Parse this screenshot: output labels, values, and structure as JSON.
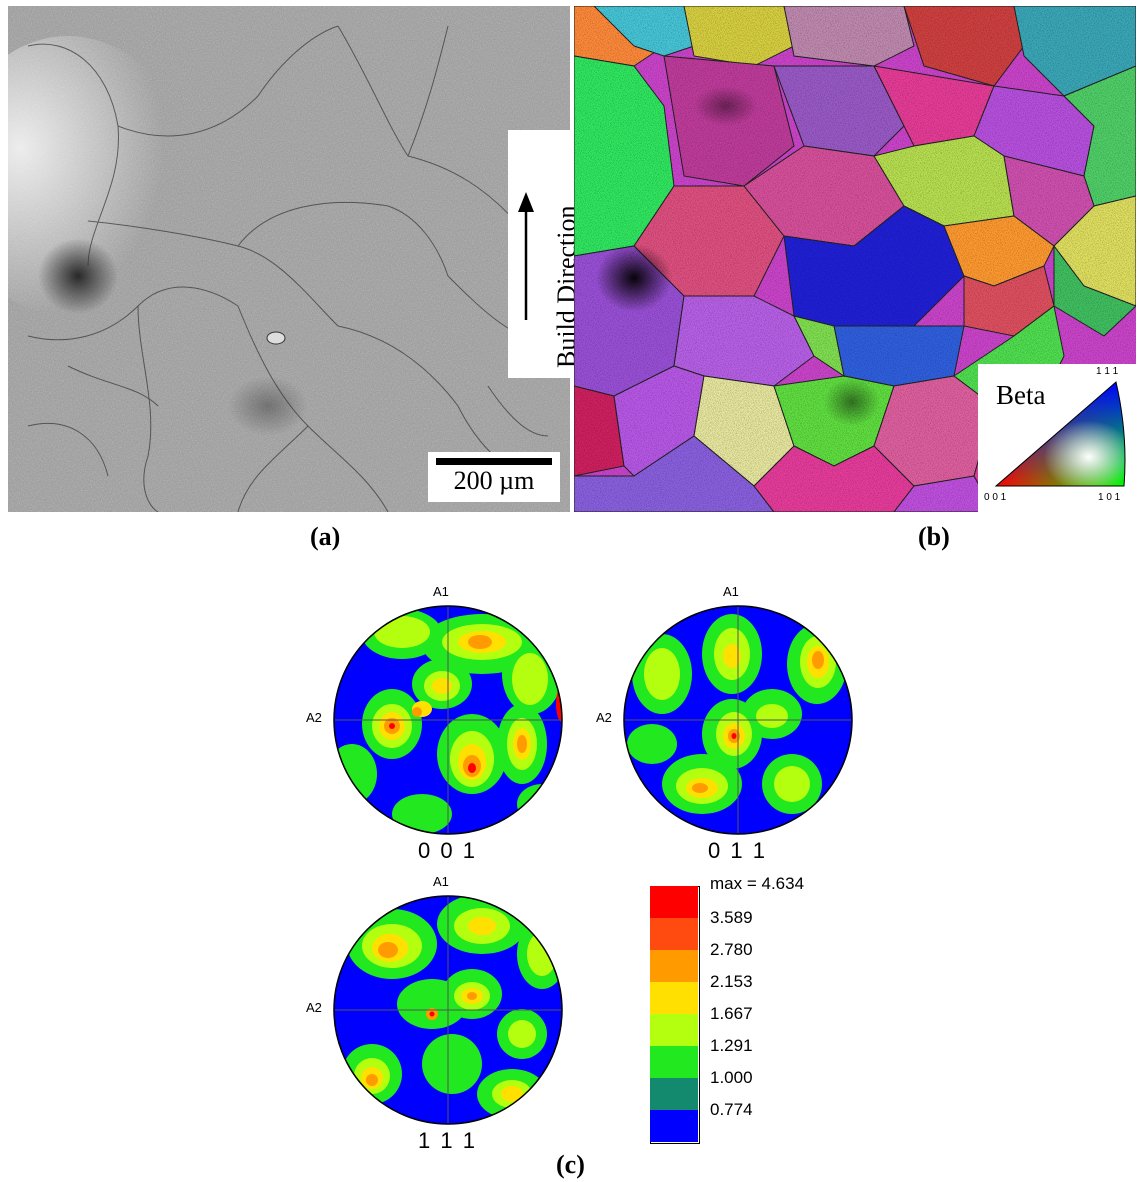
{
  "panel_a": {
    "label": "(a)",
    "scale_bar": "200 µm",
    "build_direction": "Build Direction"
  },
  "panel_b": {
    "label": "(b)",
    "ipf_key": {
      "phase": "Beta",
      "corner_top": "1 1 1",
      "corner_left": "0 0 1",
      "corner_right": "1 0 1"
    }
  },
  "panel_c": {
    "label": "(c)",
    "axis_a1": "A1",
    "axis_a2": "A2",
    "pole_figures": [
      {
        "name": "0 0 1"
      },
      {
        "name": "0 1 1"
      },
      {
        "name": "1 1 1"
      }
    ],
    "legend": {
      "max": "max = 4.634",
      "levels": [
        {
          "value": "3.589",
          "color": "#ff0000"
        },
        {
          "value": "2.780",
          "color": "#ff4a10"
        },
        {
          "value": "2.153",
          "color": "#ff9b00"
        },
        {
          "value": "1.667",
          "color": "#ffe000"
        },
        {
          "value": "1.291",
          "color": "#b4ff10"
        },
        {
          "value": "1.000",
          "color": "#22e820"
        },
        {
          "value": "0.774",
          "color": "#138a6e"
        },
        {
          "value": "",
          "color": "#0000ff"
        }
      ]
    }
  }
}
